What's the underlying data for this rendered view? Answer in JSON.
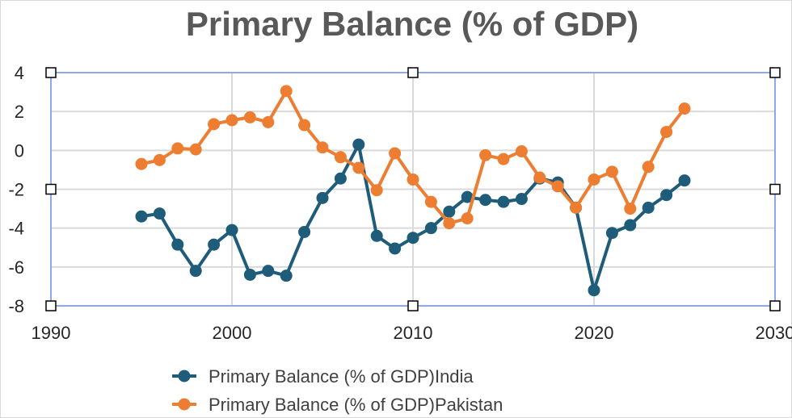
{
  "chart_data": {
    "type": "line",
    "title": "Primary Balance (% of GDP)",
    "xlabel": "",
    "ylabel": "",
    "xlim": [
      1990,
      2030
    ],
    "ylim": [
      -8,
      4
    ],
    "xticks": [
      1990,
      2000,
      2010,
      2020,
      2030
    ],
    "yticks": [
      4,
      2,
      0,
      -2,
      -4,
      -6,
      -8
    ],
    "xtick_labels": [
      "1990",
      "2000",
      "2010",
      "2020",
      "2030"
    ],
    "ytick_labels": [
      "4",
      "2",
      "0",
      "-2",
      "-4",
      "-6",
      "-8"
    ],
    "grid": true,
    "legend_position": "bottom",
    "series": [
      {
        "name": "Primary Balance (% of GDP)India",
        "color": "#1f5c7a",
        "x": [
          1995,
          1996,
          1997,
          1998,
          1999,
          2000,
          2001,
          2002,
          2003,
          2004,
          2005,
          2006,
          2007,
          2008,
          2009,
          2010,
          2011,
          2012,
          2013,
          2014,
          2015,
          2016,
          2017,
          2018,
          2019,
          2020,
          2021,
          2022,
          2023,
          2024,
          2025
        ],
        "values": [
          -3.4,
          -3.25,
          -4.85,
          -6.2,
          -4.85,
          -4.1,
          -6.4,
          -6.2,
          -6.45,
          -4.2,
          -2.45,
          -1.45,
          0.3,
          -4.4,
          -5.05,
          -4.5,
          -4.0,
          -3.15,
          -2.4,
          -2.55,
          -2.65,
          -2.5,
          -1.45,
          -1.65,
          -2.95,
          -7.2,
          -4.25,
          -3.85,
          -2.95,
          -2.3,
          -1.55
        ]
      },
      {
        "name": "Primary Balance (% of GDP)Pakistan",
        "color": "#ed7d31",
        "x": [
          1995,
          1996,
          1997,
          1998,
          1999,
          2000,
          2001,
          2002,
          2003,
          2004,
          2005,
          2006,
          2007,
          2008,
          2009,
          2010,
          2011,
          2012,
          2013,
          2014,
          2015,
          2016,
          2017,
          2018,
          2019,
          2020,
          2021,
          2022,
          2023,
          2024,
          2025
        ],
        "values": [
          -0.7,
          -0.5,
          0.1,
          0.05,
          1.35,
          1.55,
          1.7,
          1.45,
          3.05,
          1.3,
          0.15,
          -0.35,
          -0.9,
          -2.05,
          -0.15,
          -1.5,
          -2.65,
          -3.75,
          -3.5,
          -0.25,
          -0.45,
          -0.05,
          -1.4,
          -1.85,
          -2.95,
          -1.5,
          -1.1,
          -3.0,
          -0.85,
          0.95,
          2.15
        ]
      }
    ]
  }
}
